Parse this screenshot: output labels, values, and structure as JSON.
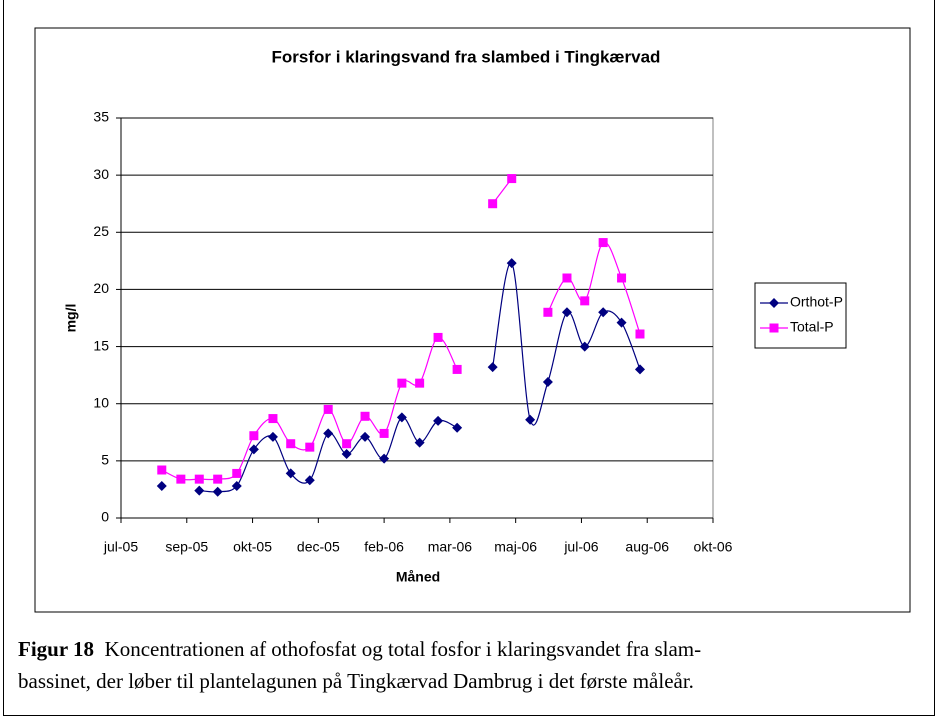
{
  "chart_data": {
    "type": "line",
    "title": "Forsfor i klaringsvand fra slambed i Tingkærvad",
    "x_label": "Måned",
    "y_label": "mg/l",
    "x": [
      0.62,
      0.91,
      1.19,
      1.47,
      1.76,
      2.02,
      2.31,
      2.58,
      2.87,
      3.15,
      3.43,
      3.71,
      4.0,
      4.27,
      4.54,
      4.82,
      5.11,
      5.38,
      5.65,
      5.94,
      6.22,
      6.49,
      6.78,
      7.05,
      7.33,
      7.61,
      7.89
    ],
    "series": [
      {
        "name": "Orthot-P",
        "color": "#000080",
        "marker": "diamond",
        "values": [
          2.8,
          null,
          2.4,
          2.3,
          2.8,
          6.0,
          7.1,
          3.9,
          3.3,
          7.4,
          5.6,
          7.1,
          5.2,
          8.8,
          6.6,
          8.5,
          7.9,
          null,
          13.2,
          22.3,
          8.6,
          11.9,
          18.0,
          15.0,
          18.0,
          17.1,
          13.0
        ]
      },
      {
        "name": "Total-P",
        "color": "#ff00ff",
        "marker": "square",
        "values": [
          4.2,
          3.4,
          3.4,
          3.4,
          3.9,
          7.2,
          8.7,
          6.5,
          6.2,
          9.5,
          6.5,
          8.9,
          7.4,
          11.8,
          11.8,
          15.8,
          13.0,
          null,
          27.5,
          29.7,
          null,
          18.0,
          21.0,
          19.0,
          24.1,
          21.0,
          16.1
        ]
      }
    ],
    "xlim": [
      0,
      9
    ],
    "xticks": [
      {
        "value": 0,
        "label": "jul-05"
      },
      {
        "value": 1,
        "label": "sep-05"
      },
      {
        "value": 2,
        "label": "okt-05"
      },
      {
        "value": 3,
        "label": "dec-05"
      },
      {
        "value": 4,
        "label": "feb-06"
      },
      {
        "value": 5,
        "label": "mar-06"
      },
      {
        "value": 6,
        "label": "maj-06"
      },
      {
        "value": 7,
        "label": "jul-06"
      },
      {
        "value": 8,
        "label": "aug-06"
      },
      {
        "value": 9,
        "label": "okt-06"
      }
    ],
    "ylim": [
      0,
      35
    ],
    "yticks": [
      0,
      5,
      10,
      15,
      20,
      25,
      30,
      35
    ],
    "grid": true,
    "legend": "right"
  },
  "caption": {
    "label": "Figur 18",
    "lines": [
      "Koncentrationen af othofosfat og total fosfor i klaringsvandet fra slam-",
      "bassinet, der løber til plantelagunen på Tingkærvad Dambrug i det første måleår."
    ]
  }
}
